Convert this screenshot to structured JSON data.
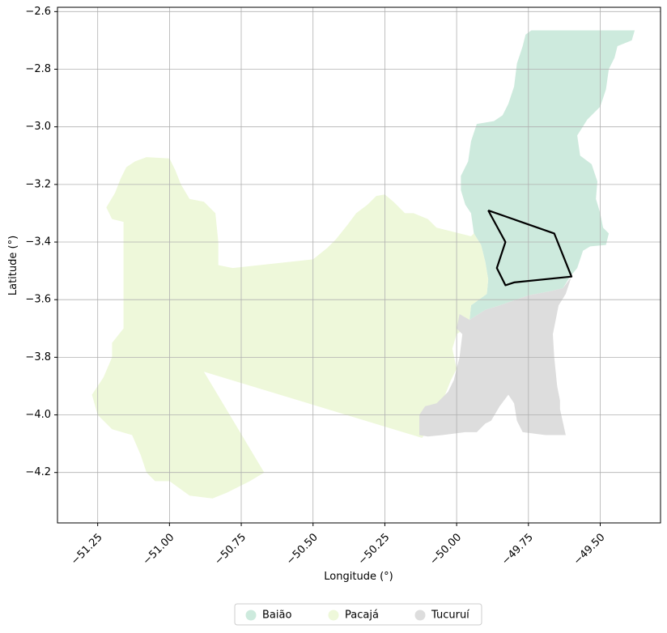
{
  "chart_data": {
    "type": "map",
    "xlabel": "Longitude (°)",
    "ylabel": "Latitude (°)",
    "xlim": [
      -51.39,
      -49.29
    ],
    "ylim": [
      -4.375,
      -2.585
    ],
    "grid": true,
    "legend_placement": "bottom-center",
    "xticks": [
      {
        "value": -51.25,
        "label": "−51.25"
      },
      {
        "value": -51.0,
        "label": "−51.00"
      },
      {
        "value": -50.75,
        "label": "−50.75"
      },
      {
        "value": -50.5,
        "label": "−50.50"
      },
      {
        "value": -50.25,
        "label": "−50.25"
      },
      {
        "value": -50.0,
        "label": "−50.00"
      },
      {
        "value": -49.75,
        "label": "−49.75"
      },
      {
        "value": -49.5,
        "label": "−49.50"
      }
    ],
    "yticks": [
      {
        "value": -2.6,
        "label": "−2.6"
      },
      {
        "value": -2.8,
        "label": "−2.8"
      },
      {
        "value": -3.0,
        "label": "−3.0"
      },
      {
        "value": -3.2,
        "label": "−3.2"
      },
      {
        "value": -3.4,
        "label": "−3.4"
      },
      {
        "value": -3.6,
        "label": "−3.6"
      },
      {
        "value": -3.8,
        "label": "−3.8"
      },
      {
        "value": -4.0,
        "label": "−4.0"
      },
      {
        "value": -4.2,
        "label": "−4.2"
      }
    ],
    "regions": [
      {
        "name": "Baião",
        "color": "#cdeadd",
        "coordinates": [
          [
            -49.76,
            -2.68
          ],
          [
            -49.74,
            -2.665
          ],
          [
            -49.38,
            -2.665
          ],
          [
            -49.39,
            -2.7
          ],
          [
            -49.44,
            -2.72
          ],
          [
            -49.45,
            -2.76
          ],
          [
            -49.47,
            -2.8
          ],
          [
            -49.48,
            -2.87
          ],
          [
            -49.5,
            -2.93
          ],
          [
            -49.545,
            -2.975
          ],
          [
            -49.58,
            -3.03
          ],
          [
            -49.57,
            -3.1
          ],
          [
            -49.53,
            -3.13
          ],
          [
            -49.51,
            -3.19
          ],
          [
            -49.515,
            -3.25
          ],
          [
            -49.5,
            -3.3
          ],
          [
            -49.49,
            -3.35
          ],
          [
            -49.47,
            -3.37
          ],
          [
            -49.48,
            -3.41
          ],
          [
            -49.535,
            -3.415
          ],
          [
            -49.56,
            -3.43
          ],
          [
            -49.58,
            -3.49
          ],
          [
            -49.605,
            -3.52
          ],
          [
            -49.63,
            -3.56
          ],
          [
            -49.67,
            -3.57
          ],
          [
            -49.75,
            -3.585
          ],
          [
            -49.85,
            -3.62
          ],
          [
            -49.9,
            -3.635
          ],
          [
            -49.955,
            -3.67
          ],
          [
            -49.95,
            -3.62
          ],
          [
            -49.895,
            -3.58
          ],
          [
            -49.89,
            -3.53
          ],
          [
            -49.9,
            -3.47
          ],
          [
            -49.915,
            -3.41
          ],
          [
            -49.94,
            -3.37
          ],
          [
            -49.95,
            -3.3
          ],
          [
            -49.97,
            -3.27
          ],
          [
            -49.985,
            -3.22
          ],
          [
            -49.985,
            -3.17
          ],
          [
            -49.96,
            -3.12
          ],
          [
            -49.95,
            -3.05
          ],
          [
            -49.93,
            -2.99
          ],
          [
            -49.87,
            -2.98
          ],
          [
            -49.84,
            -2.96
          ],
          [
            -49.82,
            -2.92
          ],
          [
            -49.8,
            -2.86
          ],
          [
            -49.79,
            -2.78
          ],
          [
            -49.78,
            -2.75
          ],
          [
            -49.77,
            -2.72
          ]
        ]
      },
      {
        "name": "Pacajá",
        "color": "#eef8da",
        "coordinates": [
          [
            -51.15,
            -3.14
          ],
          [
            -51.12,
            -3.12
          ],
          [
            -51.08,
            -3.105
          ],
          [
            -51.0,
            -3.11
          ],
          [
            -50.98,
            -3.15
          ],
          [
            -50.96,
            -3.2
          ],
          [
            -50.93,
            -3.25
          ],
          [
            -50.88,
            -3.26
          ],
          [
            -50.84,
            -3.3
          ],
          [
            -50.83,
            -3.4
          ],
          [
            -50.83,
            -3.48
          ],
          [
            -50.78,
            -3.49
          ],
          [
            -50.5,
            -3.46
          ],
          [
            -50.45,
            -3.42
          ],
          [
            -50.42,
            -3.39
          ],
          [
            -50.38,
            -3.34
          ],
          [
            -50.35,
            -3.3
          ],
          [
            -50.31,
            -3.27
          ],
          [
            -50.28,
            -3.24
          ],
          [
            -50.25,
            -3.235
          ],
          [
            -50.22,
            -3.26
          ],
          [
            -50.18,
            -3.3
          ],
          [
            -50.15,
            -3.3
          ],
          [
            -50.1,
            -3.32
          ],
          [
            -50.07,
            -3.35
          ],
          [
            -50.03,
            -3.36
          ],
          [
            -49.95,
            -3.38
          ],
          [
            -49.94,
            -3.37
          ],
          [
            -49.915,
            -3.41
          ],
          [
            -49.9,
            -3.47
          ],
          [
            -49.89,
            -3.53
          ],
          [
            -49.895,
            -3.58
          ],
          [
            -49.95,
            -3.62
          ],
          [
            -49.955,
            -3.67
          ],
          [
            -49.97,
            -3.7
          ],
          [
            -50.0,
            -3.72
          ],
          [
            -50.015,
            -3.77
          ],
          [
            -50.0,
            -3.84
          ],
          [
            -50.02,
            -3.88
          ],
          [
            -50.04,
            -3.93
          ],
          [
            -50.06,
            -3.96
          ],
          [
            -50.08,
            -4.0
          ],
          [
            -50.1,
            -4.05
          ],
          [
            -50.12,
            -4.08
          ],
          [
            -50.88,
            -3.85
          ],
          [
            -50.67,
            -4.2
          ],
          [
            -50.72,
            -4.23
          ],
          [
            -50.8,
            -4.27
          ],
          [
            -50.85,
            -4.29
          ],
          [
            -50.93,
            -4.28
          ],
          [
            -51.0,
            -4.23
          ],
          [
            -51.05,
            -4.23
          ],
          [
            -51.08,
            -4.2
          ],
          [
            -51.1,
            -4.14
          ],
          [
            -51.13,
            -4.07
          ],
          [
            -51.2,
            -4.05
          ],
          [
            -51.25,
            -4.0
          ],
          [
            -51.27,
            -3.93
          ],
          [
            -51.23,
            -3.87
          ],
          [
            -51.2,
            -3.8
          ],
          [
            -51.2,
            -3.75
          ],
          [
            -51.16,
            -3.7
          ],
          [
            -51.16,
            -3.33
          ],
          [
            -51.2,
            -3.32
          ],
          [
            -51.22,
            -3.28
          ],
          [
            -51.19,
            -3.23
          ],
          [
            -51.17,
            -3.18
          ]
        ]
      },
      {
        "name": "Tucuruí",
        "color": "#dddddd",
        "coordinates": [
          [
            -49.6,
            -3.52
          ],
          [
            -49.62,
            -3.58
          ],
          [
            -49.645,
            -3.62
          ],
          [
            -49.665,
            -3.72
          ],
          [
            -49.66,
            -3.8
          ],
          [
            -49.655,
            -3.85
          ],
          [
            -49.65,
            -3.9
          ],
          [
            -49.64,
            -3.95
          ],
          [
            -49.64,
            -3.98
          ],
          [
            -49.62,
            -4.07
          ],
          [
            -49.69,
            -4.07
          ],
          [
            -49.77,
            -4.06
          ],
          [
            -49.79,
            -4.02
          ],
          [
            -49.8,
            -3.96
          ],
          [
            -49.82,
            -3.93
          ],
          [
            -49.85,
            -3.97
          ],
          [
            -49.88,
            -4.02
          ],
          [
            -49.9,
            -4.03
          ],
          [
            -49.93,
            -4.06
          ],
          [
            -49.97,
            -4.06
          ],
          [
            -50.05,
            -4.07
          ],
          [
            -50.1,
            -4.075
          ],
          [
            -50.13,
            -4.07
          ],
          [
            -50.13,
            -4.0
          ],
          [
            -50.11,
            -3.97
          ],
          [
            -50.07,
            -3.96
          ],
          [
            -50.03,
            -3.92
          ],
          [
            -50.01,
            -3.88
          ],
          [
            -49.99,
            -3.8
          ],
          [
            -49.98,
            -3.72
          ],
          [
            -50.0,
            -3.7
          ],
          [
            -49.99,
            -3.65
          ],
          [
            -49.955,
            -3.67
          ],
          [
            -49.9,
            -3.635
          ],
          [
            -49.85,
            -3.62
          ],
          [
            -49.75,
            -3.585
          ],
          [
            -49.67,
            -3.57
          ],
          [
            -49.63,
            -3.56
          ]
        ]
      }
    ],
    "boundary": {
      "color": "#000000",
      "coordinates": [
        [
          -49.89,
          -3.29
        ],
        [
          -49.66,
          -3.37
        ],
        [
          -49.6,
          -3.52
        ],
        [
          -49.8,
          -3.54
        ],
        [
          -49.83,
          -3.55
        ],
        [
          -49.86,
          -3.49
        ],
        [
          -49.83,
          -3.4
        ],
        [
          -49.89,
          -3.29
        ]
      ]
    },
    "legend": [
      {
        "label": "Baião",
        "color": "#cdeadd"
      },
      {
        "label": "Pacajá",
        "color": "#eef8da"
      },
      {
        "label": "Tucuruí",
        "color": "#dddddd"
      }
    ]
  }
}
